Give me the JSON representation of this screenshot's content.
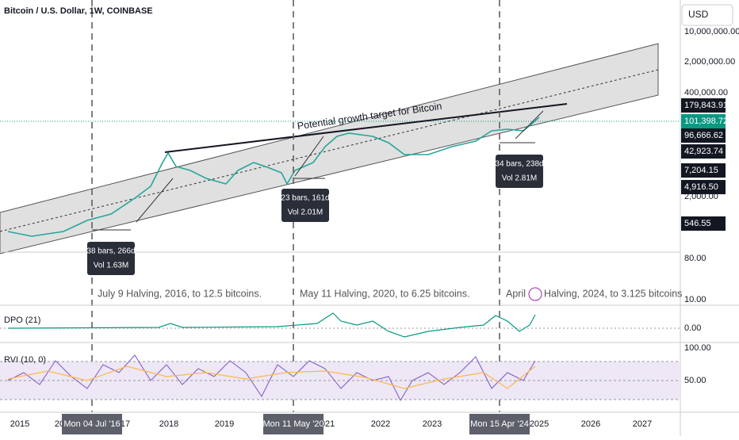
{
  "header": {
    "title": "Bitcoin / U.S. Dollar, 1W, COINBASE",
    "currency": "USD"
  },
  "price_axis": [
    "10,000,000.00",
    "2,000,000.00",
    "400,000.00",
    "2,000.00",
    "80.00",
    "10.00"
  ],
  "price_tags": [
    {
      "label": "179,843.91",
      "color": "#131722"
    },
    {
      "label": "101,398.72",
      "color": "#089981"
    },
    {
      "label": "96,666.62",
      "color": "#131722"
    },
    {
      "label": "42,923.74",
      "color": "#131722"
    },
    {
      "label": "7,204.15",
      "color": "#131722"
    },
    {
      "label": "4,916.50",
      "color": "#131722"
    },
    {
      "label": "546.55",
      "color": "#131722"
    }
  ],
  "dpo_axis": [
    "0.00"
  ],
  "rvi_axis": [
    "100.00",
    "50.00"
  ],
  "time_axis": [
    "2015",
    "20",
    "17",
    "2018",
    "2019",
    "2021",
    "2022",
    "2023",
    "2025",
    "2026",
    "2027"
  ],
  "crosshair_dates": [
    "Mon 04 Jul '16",
    "Mon 11 May '20",
    "Mon 15 Apr '24"
  ],
  "measurements": [
    {
      "range": "38 bars, 266d",
      "volume": "Vol 1.63M"
    },
    {
      "range": "23 bars, 161d",
      "volume": "Vol 2.01M"
    },
    {
      "range": "34 bars, 238d",
      "volume": "Vol 2.81M"
    }
  ],
  "annotation": "Potential growth target for Bitcoin",
  "halvings": [
    "July 9 Halving, 2016, to 12.5 bitcoins.",
    "May 11 Halving, 2020, to 6.25 bitcoins.",
    "April",
    "Halving, 2024, to 3.125 bitcoins"
  ],
  "indicators": [
    "DPO (21)",
    "RVI (10, 0)"
  ]
}
